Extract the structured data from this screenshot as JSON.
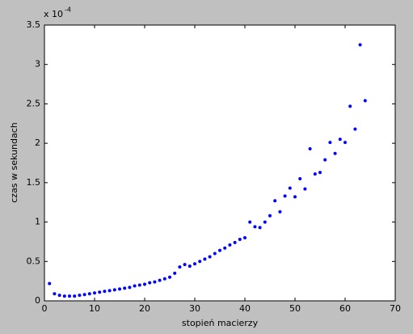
{
  "chart_data": {
    "type": "scatter",
    "xlabel": "stopień macierzy",
    "ylabel": "czas w sekundach",
    "y_multiplier": "x 10",
    "y_multiplier_exponent": "-4",
    "color": "#0000ff",
    "x": [
      1,
      2,
      3,
      4,
      5,
      6,
      7,
      8,
      9,
      10,
      11,
      12,
      13,
      14,
      15,
      16,
      17,
      18,
      19,
      20,
      21,
      22,
      23,
      24,
      25,
      26,
      27,
      28,
      29,
      30,
      31,
      32,
      33,
      34,
      35,
      36,
      37,
      38,
      39,
      40,
      41,
      42,
      43,
      44,
      45,
      46,
      47,
      48,
      49,
      50,
      51,
      52,
      53,
      54,
      55,
      56,
      57,
      58,
      59,
      60,
      61,
      62,
      63,
      64
    ],
    "values": [
      0.22,
      0.09,
      0.07,
      0.06,
      0.06,
      0.06,
      0.07,
      0.08,
      0.09,
      0.1,
      0.11,
      0.12,
      0.13,
      0.14,
      0.15,
      0.16,
      0.17,
      0.19,
      0.2,
      0.21,
      0.23,
      0.24,
      0.26,
      0.28,
      0.3,
      0.35,
      0.43,
      0.46,
      0.44,
      0.47,
      0.5,
      0.53,
      0.56,
      0.6,
      0.64,
      0.67,
      0.71,
      0.74,
      0.78,
      0.8,
      1.0,
      0.94,
      0.93,
      1.0,
      1.08,
      1.27,
      1.13,
      1.33,
      1.43,
      1.32,
      1.55,
      1.42,
      1.93,
      1.61,
      1.63,
      1.79,
      2.01,
      1.87,
      2.05,
      2.01,
      2.47,
      2.18,
      3.25,
      2.54
    ],
    "xlim": [
      0,
      70
    ],
    "xticks": [
      0,
      10,
      20,
      30,
      40,
      50,
      60,
      70
    ],
    "ylim": [
      0,
      3.5
    ],
    "yticks": [
      0,
      0.5,
      1,
      1.5,
      2,
      2.5,
      3,
      3.5
    ]
  }
}
